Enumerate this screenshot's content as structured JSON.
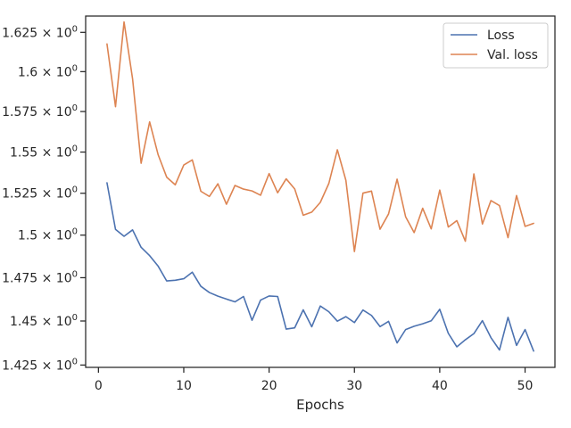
{
  "chart_data": {
    "type": "line",
    "title": "",
    "xlabel": "Epochs",
    "ylabel": "",
    "yscale": "log",
    "xlim": [
      -1.5,
      53.5
    ],
    "ylim": [
      1.4237,
      1.6355
    ],
    "x_ticks": [
      0,
      10,
      20,
      30,
      40,
      50
    ],
    "y_ticks": [
      1.425,
      1.45,
      1.475,
      1.5,
      1.525,
      1.55,
      1.575,
      1.6,
      1.625
    ],
    "x_tick_labels": [
      "0",
      "10",
      "20",
      "30",
      "40",
      "50"
    ],
    "y_tick_labels": [
      "1.425 × 10",
      "1.45 × 10",
      "1.475 × 10",
      "1.5 × 10",
      "1.525 × 10",
      "1.55 × 10",
      "1.575 × 10",
      "1.6 × 10",
      "1.625 × 10"
    ],
    "y_tick_exponent": "0",
    "grid": false,
    "legend_position": "top-right",
    "x": [
      1,
      2,
      3,
      4,
      5,
      6,
      7,
      8,
      9,
      10,
      11,
      12,
      13,
      14,
      15,
      16,
      17,
      18,
      19,
      20,
      21,
      22,
      23,
      24,
      25,
      26,
      27,
      28,
      29,
      30,
      31,
      32,
      33,
      34,
      35,
      36,
      37,
      38,
      39,
      40,
      41,
      42,
      43,
      44,
      45,
      46,
      47,
      48,
      49,
      50,
      51
    ],
    "series": [
      {
        "name": "Loss",
        "color": "#4c72b0",
        "values": [
          1.5313,
          1.5034,
          1.4993,
          1.5031,
          1.4928,
          1.4879,
          1.4817,
          1.4731,
          1.4735,
          1.4744,
          1.4782,
          1.47,
          1.4664,
          1.4643,
          1.4626,
          1.461,
          1.4641,
          1.4504,
          1.462,
          1.4644,
          1.4641,
          1.4454,
          1.4461,
          1.4564,
          1.4467,
          1.4586,
          1.4553,
          1.4499,
          1.4525,
          1.4491,
          1.4563,
          1.4532,
          1.4468,
          1.4498,
          1.4375,
          1.4451,
          1.447,
          1.4484,
          1.4501,
          1.4567,
          1.443,
          1.4353,
          1.4393,
          1.4428,
          1.4502,
          1.4405,
          1.4335,
          1.4521,
          1.4361,
          1.4451,
          1.4329
        ]
      },
      {
        "name": "Val. loss",
        "color": "#dd8452",
        "values": [
          1.6176,
          1.578,
          1.6317,
          1.5955,
          1.5432,
          1.5686,
          1.5483,
          1.5347,
          1.5301,
          1.5421,
          1.5452,
          1.5262,
          1.5231,
          1.5307,
          1.5184,
          1.5297,
          1.5275,
          1.5264,
          1.5238,
          1.5369,
          1.5253,
          1.5337,
          1.5276,
          1.5118,
          1.5137,
          1.5195,
          1.5309,
          1.5514,
          1.5328,
          1.4903,
          1.5251,
          1.5263,
          1.5035,
          1.5126,
          1.5335,
          1.5109,
          1.5015,
          1.516,
          1.5037,
          1.5269,
          1.5048,
          1.5086,
          1.4964,
          1.5367,
          1.5066,
          1.5206,
          1.5176,
          1.4985,
          1.5236,
          1.5052,
          1.507
        ]
      }
    ]
  }
}
